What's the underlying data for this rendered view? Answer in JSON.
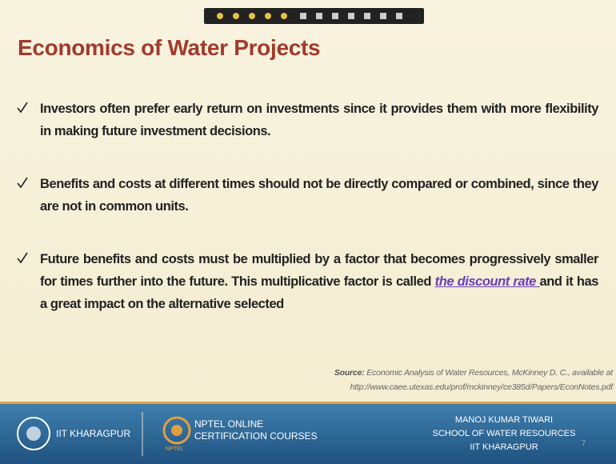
{
  "slide": {
    "title": "Economics of Water Projects",
    "bullets": [
      {
        "text": "Investors often prefer early return on investments since it provides them with more flexibility in making future investment decisions."
      },
      {
        "text": "Benefits and costs at different times should not be directly compared or combined, since they are not in common units."
      },
      {
        "before": "Future benefits and costs must be multiplied by a factor that becomes progressively smaller for times further into the future. This multiplicative factor is called ",
        "link": "the discount rate ",
        "after": "and it has a great impact on the alternative selected"
      }
    ],
    "source": {
      "label": "Source:",
      "line1": "Economic Analysis of Water Resources, McKinney D. C., available at",
      "line2": "http://www.caee.utexas.edu/prof/mckinney/ce385d/Papers/EconNotes.pdf"
    }
  },
  "footer": {
    "institute": "IIT KHARAGPUR",
    "nptel_line1": "NPTEL ONLINE",
    "nptel_line2": "CERTIFICATION COURSES",
    "nptel_logo": "NPTEL",
    "presenter": [
      "MANOJ KUMAR TIWARI",
      "SCHOOL OF WATER RESOURCES",
      "IIT KHARAGPUR"
    ],
    "page": "7"
  }
}
